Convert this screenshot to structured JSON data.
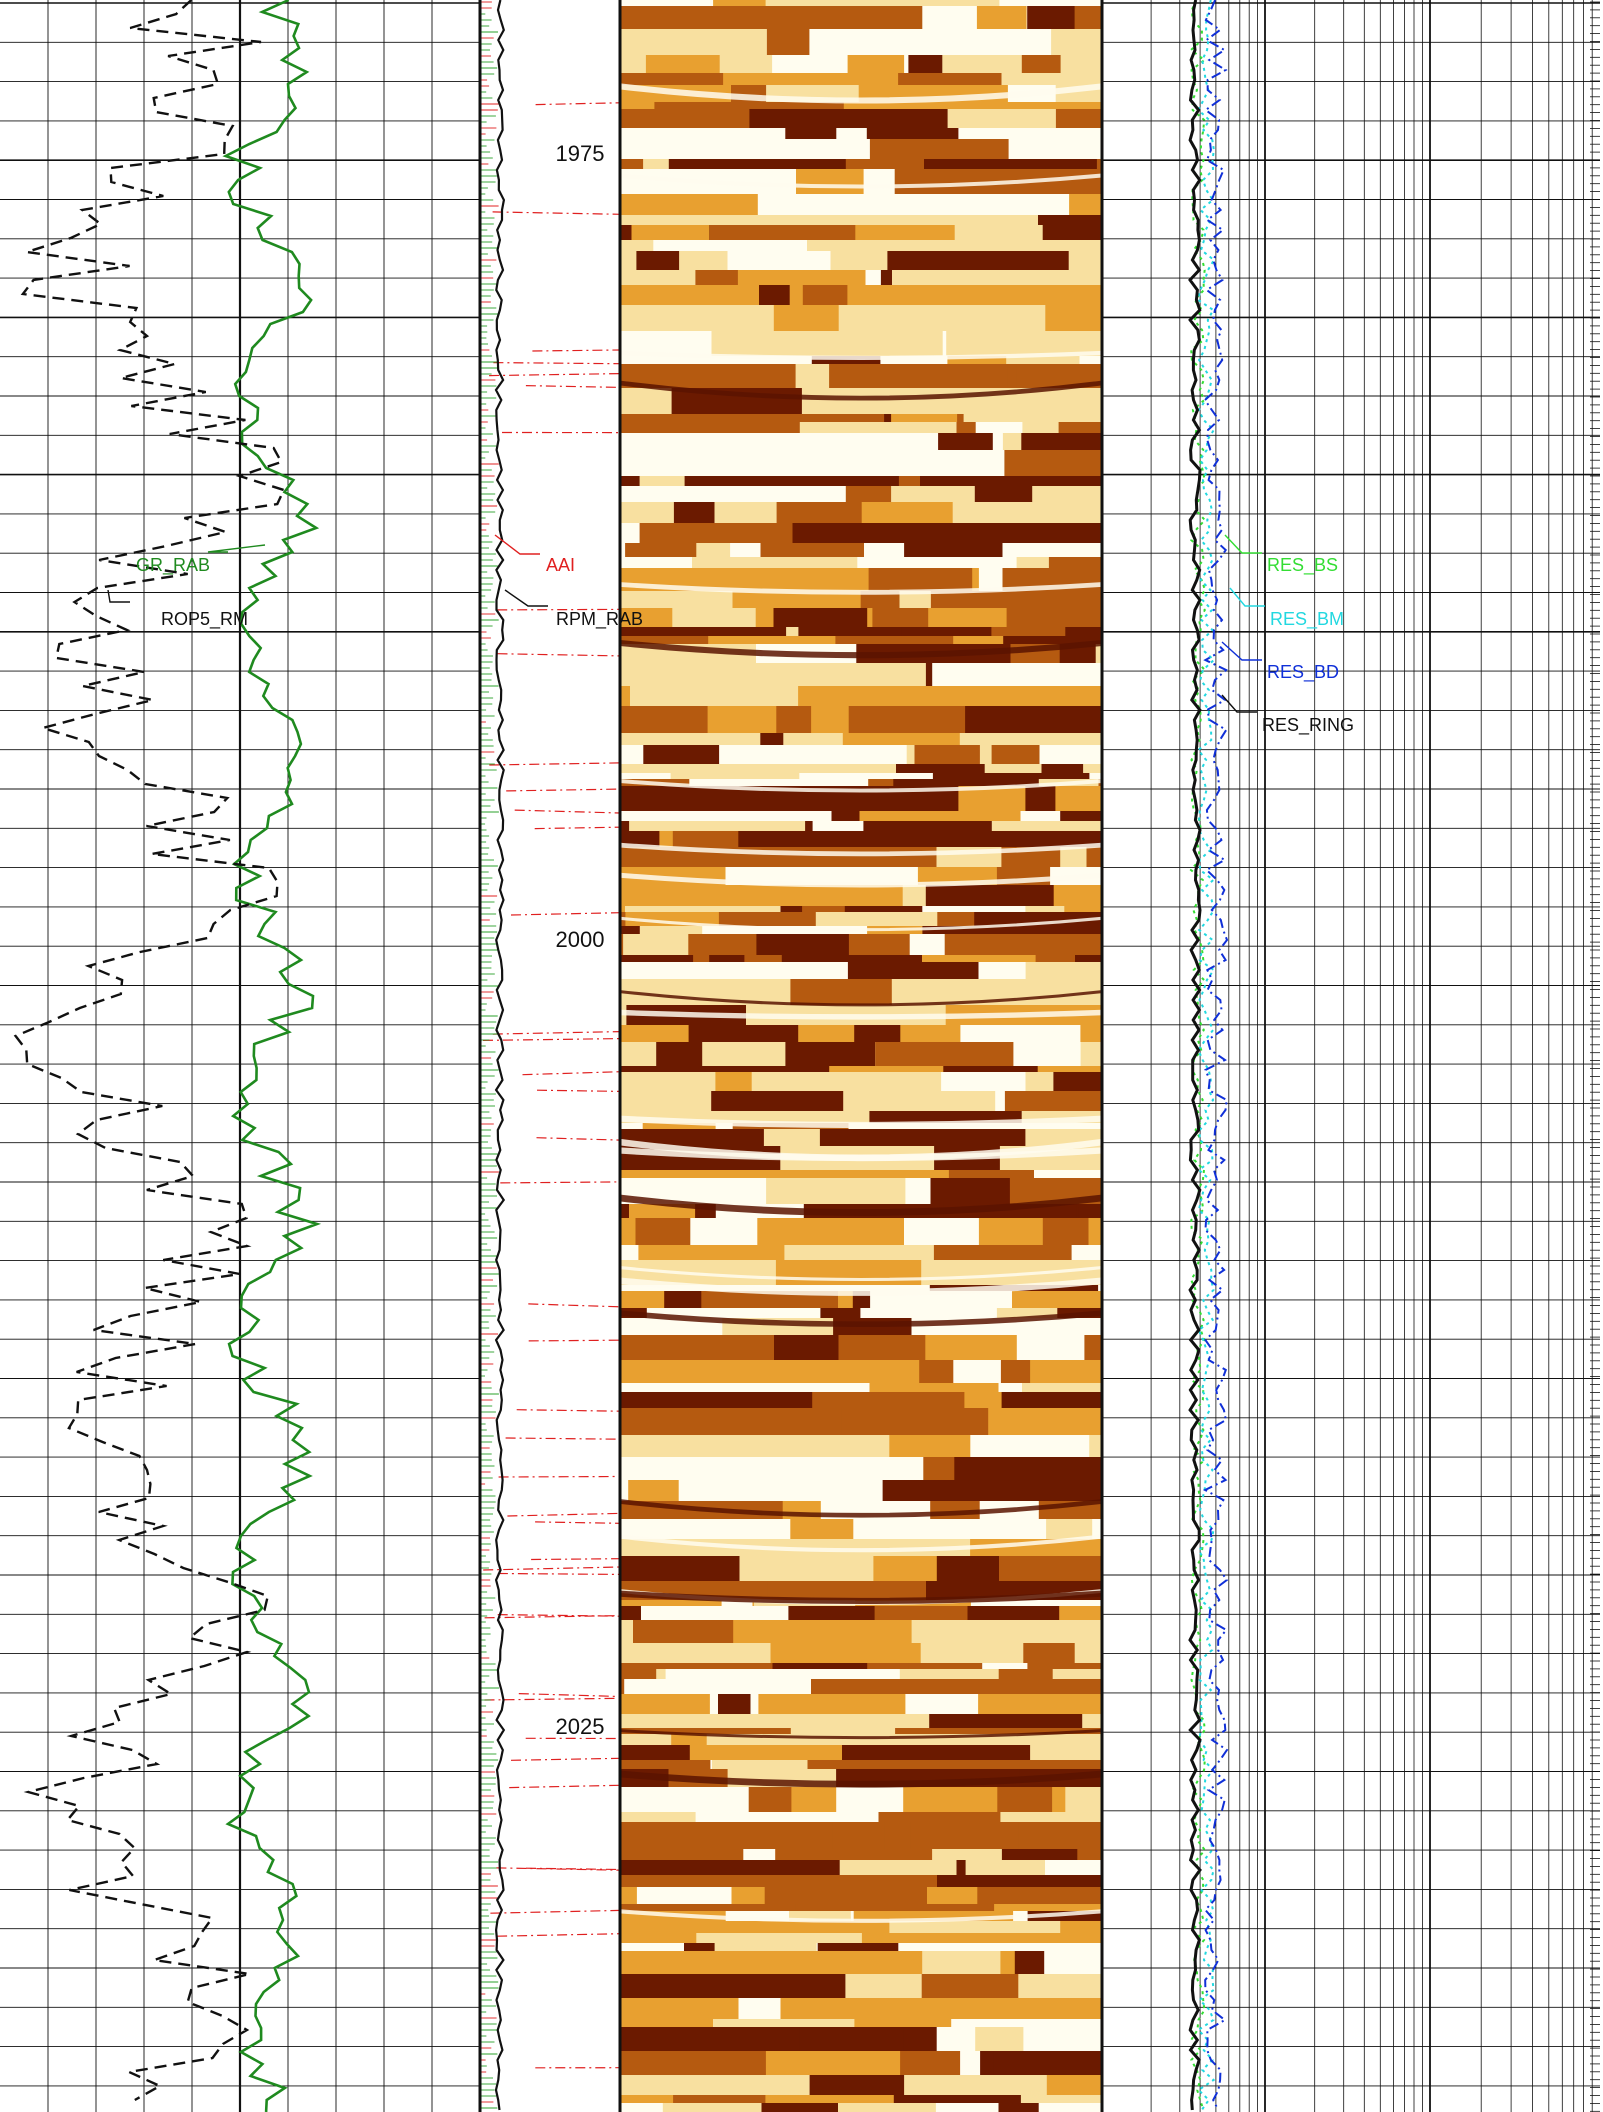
{
  "chart_data": {
    "type": "line",
    "depth_ticks": [
      "1975",
      "2000",
      "2025"
    ],
    "depth_values": [
      1975,
      2000,
      2025
    ],
    "ylim": [
      1971.3,
      2038.0
    ],
    "tracks": [
      {
        "name": "track1",
        "curves": [
          {
            "name": "GR_RAB",
            "color": "#1f8a1f",
            "style": "solid"
          },
          {
            "name": "ROP5_RM",
            "color": "#111111",
            "style": "dashed"
          }
        ]
      },
      {
        "name": "track2",
        "curves": [
          {
            "name": "AAI",
            "color": "#e02020",
            "style": "dashdot"
          },
          {
            "name": "RPM_RAB",
            "color": "#111111",
            "style": "solid"
          }
        ]
      },
      {
        "name": "image",
        "type": "heatmap",
        "palette": [
          "#6b1a00",
          "#b55a10",
          "#e8a030",
          "#f8e0a0",
          "#fffdf0"
        ]
      },
      {
        "name": "resistivity",
        "scale": "log",
        "curves": [
          {
            "name": "RES_BS",
            "color": "#33dd33",
            "style": "dotted"
          },
          {
            "name": "RES_BM",
            "color": "#22d8e0",
            "style": "dotted"
          },
          {
            "name": "RES_BD",
            "color": "#1030d8",
            "style": "dashdot"
          },
          {
            "name": "RES_RING",
            "color": "#111111",
            "style": "solid"
          }
        ]
      }
    ],
    "labels": {
      "gr_rab": "GR_RAB",
      "rop5_rm": "ROP5_RM",
      "aai": "AAI",
      "rpm_rab": "RPM_RAB",
      "res_bs": "RES_BS",
      "res_bm": "RES_BM",
      "res_bd": "RES_BD",
      "res_ring": "RES_RING"
    },
    "grid": true
  }
}
